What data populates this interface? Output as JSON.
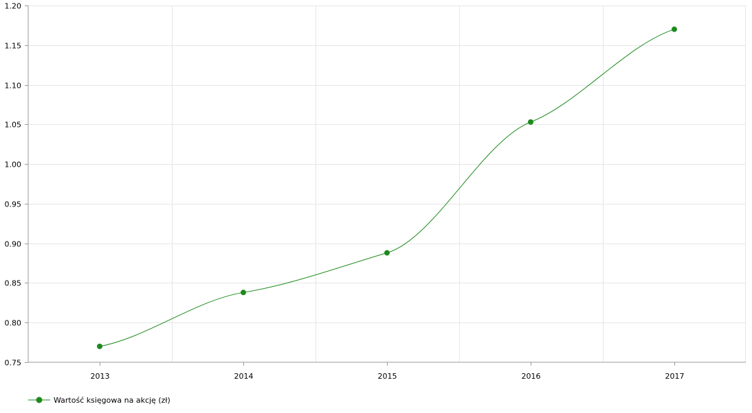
{
  "chart_data": {
    "type": "line",
    "x": [
      "2013",
      "2014",
      "2015",
      "2016",
      "2017"
    ],
    "series": [
      {
        "name": "Wartość księgowa na akcję (zł)",
        "values": [
          0.77,
          0.838,
          0.888,
          1.053,
          1.17
        ],
        "color": "#1e8a1e"
      }
    ],
    "ylim": [
      0.75,
      1.2
    ],
    "yticks": [
      "0.75",
      "0.80",
      "0.85",
      "0.90",
      "0.95",
      "1.00",
      "1.05",
      "1.10",
      "1.15",
      "1.20"
    ],
    "grid": true,
    "legend": "bottom-left",
    "line_style": "smooth"
  }
}
